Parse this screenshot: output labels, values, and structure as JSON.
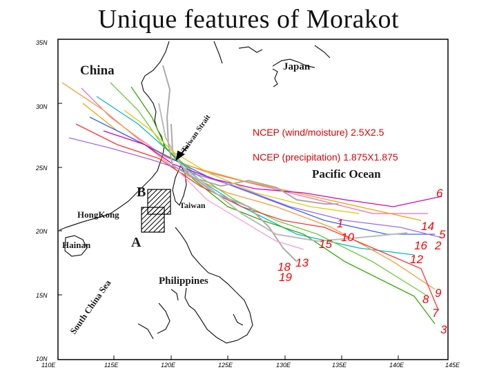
{
  "title": "Unique features of Morakot",
  "annotations": {
    "wind": "NCEP (wind/moisture) 2.5X2.5",
    "precip": "NCEP (precipitation) 1.875X1.875"
  },
  "map": {
    "lat_labels": [
      "35N",
      "30N",
      "25N",
      "20N",
      "15N",
      "10N"
    ],
    "lon_labels": [
      "110E",
      "115E",
      "120E",
      "125E",
      "130E",
      "135E",
      "140E",
      "145E"
    ],
    "places": {
      "china": "China",
      "japan": "Japan",
      "pacific": "Pacific Ocean",
      "taiwan": "Taiwan",
      "hongkong": "HongKong",
      "hainan": "Hainan",
      "philippines": "Philippines",
      "scs": "South China Sea",
      "strait": "Taiwan Strait"
    },
    "region_labels": {
      "a": "A",
      "b": "B"
    },
    "track_numbers": [
      "6",
      "14",
      "5",
      "2",
      "16",
      "12",
      "1",
      "15",
      "10",
      "18",
      "13",
      "19",
      "9",
      "8",
      "7",
      "3"
    ],
    "colors": {
      "land": "#1a1a1a",
      "track_numbers": "#ff0000",
      "annotation": "#e00000"
    }
  }
}
